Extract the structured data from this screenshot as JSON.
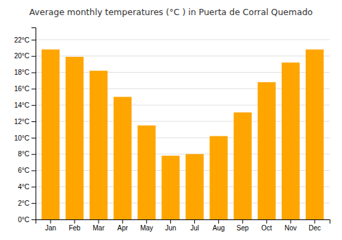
{
  "chart_data": {
    "type": "bar",
    "title": "Average monthly temperatures (°C ) in Puerta de Corral Quemado",
    "categories": [
      "Jan",
      "Feb",
      "Mar",
      "Apr",
      "May",
      "Jun",
      "Jul",
      "Aug",
      "Sep",
      "Oct",
      "Nov",
      "Dec"
    ],
    "values": [
      20.8,
      19.9,
      18.2,
      15.0,
      11.5,
      7.8,
      8.0,
      10.2,
      13.1,
      16.8,
      19.2,
      20.8
    ],
    "color": "#FFA500",
    "ylim": [
      0,
      23.5
    ],
    "yticks": [
      {
        "value": 0,
        "label": "0°C"
      },
      {
        "value": 2,
        "label": "2°C"
      },
      {
        "value": 4,
        "label": "4°C"
      },
      {
        "value": 6,
        "label": "6°C"
      },
      {
        "value": 8,
        "label": "8°C"
      },
      {
        "value": 10,
        "label": "10°C"
      },
      {
        "value": 12,
        "label": "12°C"
      },
      {
        "value": 14,
        "label": "14°C"
      },
      {
        "value": 16,
        "label": "16°C"
      },
      {
        "value": 18,
        "label": "18°C"
      },
      {
        "value": 20,
        "label": "20°C"
      },
      {
        "value": 22,
        "label": "22°C"
      }
    ],
    "grid": true
  }
}
